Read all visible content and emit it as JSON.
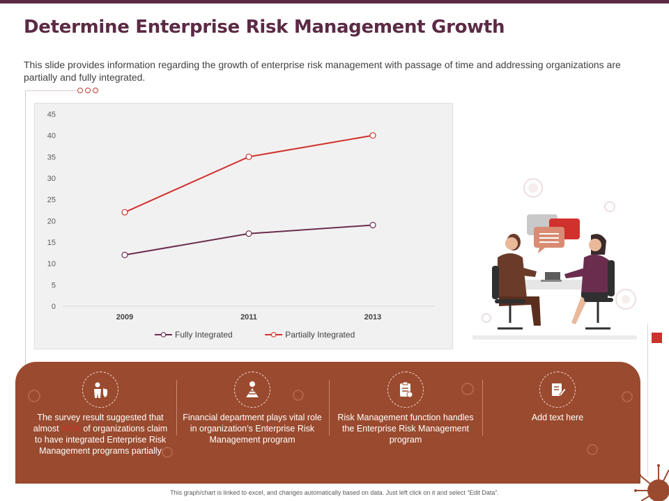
{
  "header": {
    "title": "Determine Enterprise Risk Management Growth",
    "subtitle": "This slide provides information regarding the growth of enterprise risk management with passage of time and addressing organizations are partially and fully integrated."
  },
  "colors": {
    "title": "#5b2a45",
    "fully_integrated": "#6b2d4e",
    "partially_integrated": "#d0312d",
    "panel": "#9a4a2e"
  },
  "chart_data": {
    "type": "line",
    "categories": [
      "2009",
      "2011",
      "2013"
    ],
    "series": [
      {
        "name": "Fully Integrated",
        "values": [
          12,
          17,
          19
        ]
      },
      {
        "name": "Partially Integrated",
        "values": [
          22,
          35,
          40
        ]
      }
    ],
    "yticks": [
      0,
      5,
      10,
      15,
      20,
      25,
      30,
      35,
      40,
      45
    ],
    "ylim": [
      0,
      45
    ],
    "grid": false,
    "legend_position": "bottom"
  },
  "cards": [
    {
      "icon": "person-shield-icon",
      "text_before": "The survey result suggested that almost ",
      "highlight": "XX%",
      "text_after": " of organizations claim to have integrated Enterprise Risk Management programs partially"
    },
    {
      "icon": "money-pyramid-icon",
      "text": "Financial department plays vital role in organization’s Enterprise Risk Management program"
    },
    {
      "icon": "clipboard-gear-icon",
      "text": "Risk Management function handles the Enterprise Risk Management program"
    },
    {
      "icon": "document-pen-icon",
      "text": "Add text here"
    }
  ],
  "footer": "This graph/chart is linked to excel, and changes automatically based on data. Just left click on it and select “Edit Data”."
}
